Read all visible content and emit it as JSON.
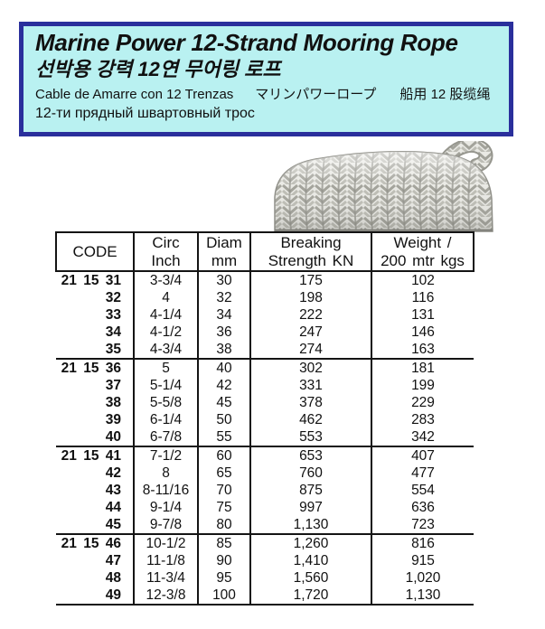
{
  "header": {
    "title_en": "Marine Power 12-Strand Mooring Rope",
    "title_ko": "선박용 강력 12연 무어링 로프",
    "title_es": "Cable de Amarre con 12 Trenzas",
    "title_ja": "マリンパワーロープ",
    "title_zh": "船用 12 股缆绳",
    "title_ru": "12-ти прядный швартовный трос",
    "bg_color": "#b9f1f1",
    "border_color": "#2a2f9c"
  },
  "rope_photo": {
    "description": "Coiled grey-white 12-strand braided mooring rope with herringbone texture"
  },
  "table": {
    "columns": [
      {
        "line1": "CODE",
        "line2": ""
      },
      {
        "line1": "Circ",
        "line2": "Inch"
      },
      {
        "line1": "Diam",
        "line2": "mm"
      },
      {
        "line1": "Breaking",
        "line2": "Strength KN"
      },
      {
        "line1": "Weight /",
        "line2": "200 mtr kgs"
      }
    ],
    "groups": [
      {
        "rows": [
          [
            "21 15 31",
            "3-3/4",
            "30",
            "175",
            "102"
          ],
          [
            "32",
            "4",
            "32",
            "198",
            "116"
          ],
          [
            "33",
            "4-1/4",
            "34",
            "222",
            "131"
          ],
          [
            "34",
            "4-1/2",
            "36",
            "247",
            "146"
          ],
          [
            "35",
            "4-3/4",
            "38",
            "274",
            "163"
          ]
        ]
      },
      {
        "rows": [
          [
            "21 15 36",
            "5",
            "40",
            "302",
            "181"
          ],
          [
            "37",
            "5-1/4",
            "42",
            "331",
            "199"
          ],
          [
            "38",
            "5-5/8",
            "45",
            "378",
            "229"
          ],
          [
            "39",
            "6-1/4",
            "50",
            "462",
            "283"
          ],
          [
            "40",
            "6-7/8",
            "55",
            "553",
            "342"
          ]
        ]
      },
      {
        "rows": [
          [
            "21 15 41",
            "7-1/2",
            "60",
            "653",
            "407"
          ],
          [
            "42",
            "8",
            "65",
            "760",
            "477"
          ],
          [
            "43",
            "8-11/16",
            "70",
            "875",
            "554"
          ],
          [
            "44",
            "9-1/4",
            "75",
            "997",
            "636"
          ],
          [
            "45",
            "9-7/8",
            "80",
            "1,130",
            "723"
          ]
        ]
      },
      {
        "rows": [
          [
            "21 15 46",
            "10-1/2",
            "85",
            "1,260",
            "816"
          ],
          [
            "47",
            "11-1/8",
            "90",
            "1,410",
            "915"
          ],
          [
            "48",
            "11-3/4",
            "95",
            "1,560",
            "1,020"
          ],
          [
            "49",
            "12-3/8",
            "100",
            "1,720",
            "1,130"
          ]
        ]
      }
    ]
  }
}
